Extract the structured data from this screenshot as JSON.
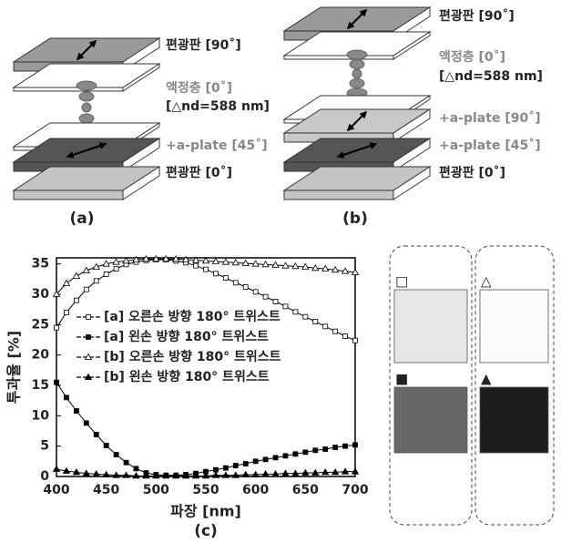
{
  "diagrams": [
    {
      "caption": "(a)",
      "labels": [
        "편광판 [90˚]",
        "액정층 [0˚]",
        "[△nd=588 nm]",
        "+a-plate [45˚]",
        "편광판 [0˚]"
      ]
    },
    {
      "caption": "(b)",
      "labels": [
        "편광판 [90˚]",
        "액정층 [0˚]",
        "[△nd=588 nm]",
        "+a-plate [90˚]",
        "+a-plate [45˚]",
        "편광판 [0˚]"
      ]
    }
  ],
  "chart_data": {
    "type": "line",
    "caption": "(c)",
    "x_label": "파장 [nm]",
    "y_label": "투과율 [%]",
    "x": [
      400,
      410,
      420,
      430,
      440,
      450,
      460,
      470,
      480,
      490,
      500,
      510,
      520,
      530,
      540,
      550,
      560,
      570,
      580,
      590,
      600,
      610,
      620,
      630,
      640,
      650,
      660,
      670,
      680,
      690,
      700
    ],
    "series": [
      {
        "name": "[a] 오른손 방향 180° 트위스트",
        "color": "#000000",
        "marker": "open-square",
        "values": [
          24.5,
          27,
          29,
          30.8,
          32.2,
          33.3,
          34.2,
          34.9,
          35.3,
          35.6,
          35.7,
          35.7,
          35.5,
          35.2,
          34.7,
          34.1,
          33.4,
          32.7,
          31.9,
          31.2,
          30.4,
          29.6,
          28.8,
          28.0,
          27.1,
          26.3,
          25.5,
          24.7,
          23.9,
          23.1,
          22.4
        ]
      },
      {
        "name": "[a] 왼손 방향 180° 트위스트",
        "color": "#000000",
        "marker": "filled-square",
        "values": [
          15.5,
          13,
          10.8,
          8.8,
          6.9,
          5.1,
          3.6,
          2.3,
          1.3,
          0.6,
          0.3,
          0.2,
          0.2,
          0.3,
          0.5,
          0.8,
          1.1,
          1.4,
          1.8,
          2.1,
          2.5,
          2.8,
          3.1,
          3.4,
          3.7,
          4.0,
          4.3,
          4.5,
          4.8,
          5.0,
          5.2
        ]
      },
      {
        "name": "[b] 오른손 방향 180° 트위스트",
        "color": "#000000",
        "marker": "open-triangle",
        "values": [
          30,
          31.8,
          33,
          33.9,
          34.5,
          35,
          35.3,
          35.5,
          35.7,
          35.8,
          35.8,
          35.8,
          35.8,
          35.7,
          35.6,
          35.5,
          35.4,
          35.3,
          35.2,
          35.1,
          35,
          34.9,
          34.8,
          34.7,
          34.6,
          34.5,
          34.3,
          34.2,
          34,
          33.8,
          33.6
        ]
      },
      {
        "name": "[b] 왼손 방향 180° 트위스트",
        "color": "#000000",
        "marker": "filled-triangle",
        "values": [
          1.2,
          0.9,
          0.7,
          0.5,
          0.4,
          0.3,
          0.2,
          0.2,
          0.1,
          0.1,
          0.1,
          0.1,
          0.1,
          0.1,
          0.1,
          0.1,
          0.2,
          0.2,
          0.2,
          0.3,
          0.3,
          0.4,
          0.4,
          0.5,
          0.5,
          0.6,
          0.6,
          0.7,
          0.7,
          0.8,
          0.8
        ]
      }
    ],
    "xlim": [
      400,
      700
    ],
    "ylim": [
      0,
      36
    ],
    "xticks": [
      400,
      450,
      500,
      550,
      600,
      650,
      700
    ],
    "yticks": [
      0,
      5,
      10,
      15,
      20,
      25,
      30,
      35
    ]
  },
  "swatches": [
    {
      "label": "□",
      "color": "#e6e6e6"
    },
    {
      "label": "■",
      "color": "#686868"
    },
    {
      "label": "△",
      "color": "#fbfbfb"
    },
    {
      "label": "▲",
      "color": "#1c1c1c"
    }
  ]
}
